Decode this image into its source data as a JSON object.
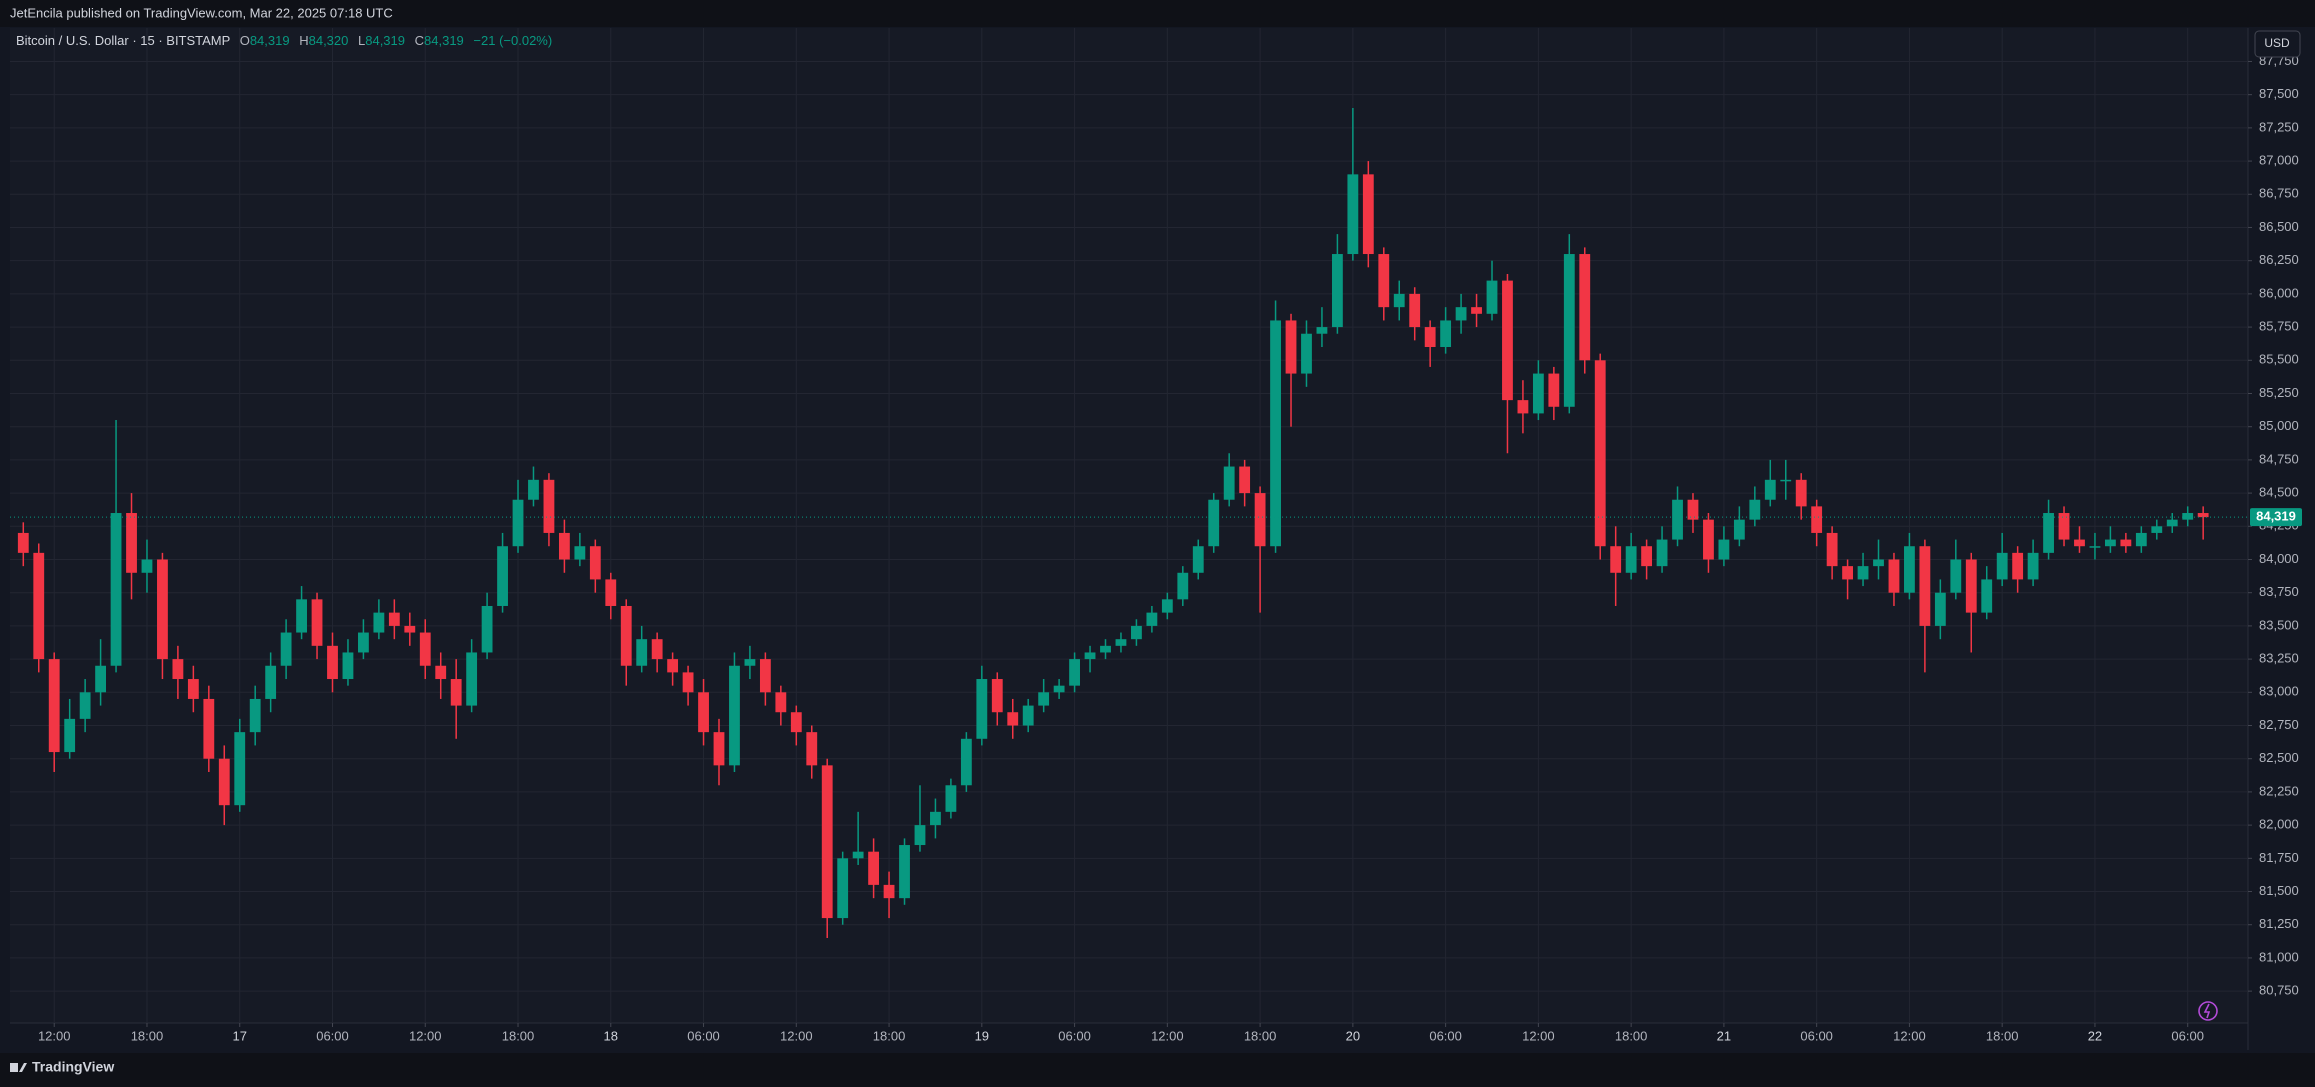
{
  "header": {
    "publisher": "JetEncila published on TradingView.com, Mar 22, 2025 07:18 UTC"
  },
  "legend": {
    "symbol": "Bitcoin / U.S. Dollar · 15 · BITSTAMP",
    "ohlc": [
      {
        "key": "O",
        "value": "84,319"
      },
      {
        "key": "H",
        "value": "84,320"
      },
      {
        "key": "L",
        "value": "84,319"
      },
      {
        "key": "C",
        "value": "84,319"
      }
    ],
    "change": "−21 (−0.02%)"
  },
  "currency": "USD",
  "footer": "TradingView",
  "chart_data": {
    "type": "candlestick",
    "x": [
      10,
      11,
      12,
      13,
      14,
      15,
      16,
      17,
      18,
      19,
      20,
      21,
      22,
      23,
      24,
      25,
      26,
      27,
      28,
      29,
      30,
      31,
      32,
      33,
      34,
      35,
      36,
      37,
      38,
      39,
      40,
      41,
      42,
      43,
      44,
      45,
      46,
      47,
      48,
      49,
      50,
      51,
      52,
      53,
      54,
      55,
      56,
      57,
      58,
      59,
      60,
      61,
      62,
      63,
      64,
      65,
      66,
      67,
      68,
      69,
      70,
      71,
      72,
      73,
      74,
      75,
      76,
      77,
      78,
      79,
      80,
      81,
      82,
      83,
      84,
      85,
      86,
      87,
      88,
      89,
      90,
      91,
      92,
      93,
      94,
      95,
      96,
      97,
      98,
      99,
      100,
      101,
      102,
      103,
      104,
      105,
      106,
      107,
      108,
      109,
      110,
      111,
      112,
      113,
      114,
      115,
      116,
      117,
      118,
      119,
      120,
      121,
      122,
      123,
      124,
      125,
      126,
      127,
      128,
      129,
      130,
      131,
      132,
      133,
      134,
      135,
      136,
      137,
      138,
      139,
      140,
      141,
      142,
      143,
      144,
      145,
      146,
      147,
      148,
      149,
      150,
      151
    ],
    "open": [
      84200,
      84050,
      83250,
      82550,
      82800,
      83000,
      83200,
      84350,
      83900,
      84000,
      83250,
      83100,
      82950,
      82500,
      82150,
      82700,
      82950,
      83200,
      83450,
      83700,
      83350,
      83100,
      83300,
      83450,
      83600,
      83500,
      83450,
      83200,
      83100,
      82900,
      83300,
      83650,
      84100,
      84450,
      84600,
      84200,
      84000,
      84100,
      83850,
      83650,
      83200,
      83400,
      83250,
      83150,
      83000,
      82700,
      82450,
      83200,
      83250,
      83000,
      82850,
      82700,
      82450,
      81300,
      81750,
      81800,
      81550,
      81450,
      81850,
      82000,
      82100,
      82300,
      82650,
      83100,
      82850,
      82750,
      82900,
      83000,
      83050,
      83250,
      83300,
      83350,
      83400,
      83500,
      83600,
      83700,
      83900,
      84100,
      84450,
      84700,
      84500,
      84100,
      85800,
      85400,
      85700,
      85750,
      86300,
      86900,
      86300,
      85900,
      86000,
      85750,
      85600,
      85800,
      85900,
      85850,
      86100,
      85200,
      85100,
      85400,
      85150,
      86300,
      85500,
      84100,
      83900,
      84100,
      83950,
      84150,
      84450,
      84300,
      84000,
      84150,
      84300,
      84450,
      84600,
      84600,
      84400,
      84200,
      83950,
      83850,
      83950,
      84000,
      83750,
      84100,
      83500,
      83750,
      84000,
      83600,
      83850,
      84050,
      83850,
      84050,
      84350,
      84150,
      84100,
      84100,
      84150,
      84100,
      84200,
      84250,
      84300,
      84350
    ],
    "high": [
      84280,
      84120,
      83300,
      82950,
      83100,
      83400,
      85050,
      84500,
      84150,
      84050,
      83350,
      83200,
      83050,
      82600,
      82800,
      83050,
      83300,
      83550,
      83800,
      83750,
      83450,
      83400,
      83550,
      83700,
      83700,
      83600,
      83550,
      83300,
      83250,
      83400,
      83750,
      84200,
      84600,
      84700,
      84650,
      84300,
      84200,
      84150,
      83900,
      83700,
      83500,
      83450,
      83300,
      83200,
      83100,
      82800,
      83300,
      83350,
      83300,
      83050,
      82900,
      82750,
      82500,
      81800,
      82100,
      81900,
      81650,
      81900,
      82300,
      82200,
      82350,
      82700,
      83200,
      83150,
      82950,
      82950,
      83100,
      83100,
      83300,
      83350,
      83400,
      83450,
      83550,
      83650,
      83750,
      83950,
      84150,
      84500,
      84800,
      84750,
      84550,
      85950,
      85850,
      85800,
      85900,
      86450,
      87400,
      87000,
      86350,
      86100,
      86050,
      85800,
      85900,
      86000,
      86000,
      86250,
      86150,
      85350,
      85500,
      85450,
      86450,
      86350,
      85550,
      84250,
      84200,
      84150,
      84250,
      84550,
      84500,
      84350,
      84250,
      84400,
      84550,
      84750,
      84750,
      84650,
      84450,
      84250,
      84000,
      84050,
      84150,
      84050,
      84200,
      84150,
      83850,
      84150,
      84050,
      83950,
      84200,
      84100,
      84150,
      84450,
      84400,
      84250,
      84200,
      84250,
      84200,
      84250,
      84300,
      84350,
      84400,
      84400
    ],
    "low": [
      83950,
      83150,
      82400,
      82500,
      82700,
      82900,
      83150,
      83700,
      83750,
      83100,
      82950,
      82850,
      82400,
      82000,
      82100,
      82600,
      82850,
      83100,
      83400,
      83250,
      83000,
      83050,
      83250,
      83400,
      83400,
      83350,
      83100,
      82950,
      82650,
      82850,
      83250,
      83600,
      84050,
      84400,
      84100,
      83900,
      83950,
      83750,
      83550,
      83050,
      83150,
      83150,
      83050,
      82900,
      82600,
      82300,
      82400,
      83100,
      82900,
      82750,
      82600,
      82350,
      81150,
      81250,
      81700,
      81450,
      81300,
      81400,
      81800,
      81900,
      82050,
      82250,
      82600,
      82750,
      82650,
      82700,
      82850,
      82950,
      83000,
      83150,
      83250,
      83300,
      83350,
      83450,
      83550,
      83650,
      83850,
      84050,
      84400,
      84400,
      83600,
      84050,
      85000,
      85300,
      85600,
      85700,
      86250,
      86200,
      85800,
      85800,
      85650,
      85450,
      85550,
      85700,
      85750,
      85800,
      84800,
      84950,
      85050,
      85050,
      85100,
      85400,
      84000,
      83650,
      83850,
      83850,
      83900,
      84100,
      84200,
      83900,
      83950,
      84100,
      84250,
      84400,
      84450,
      84300,
      84100,
      83850,
      83700,
      83800,
      83850,
      83650,
      83700,
      83150,
      83400,
      83700,
      83300,
      83550,
      83800,
      83750,
      83800,
      84000,
      84100,
      84050,
      84000,
      84050,
      84050,
      84050,
      84150,
      84200,
      84250,
      84150
    ],
    "close": [
      84050,
      83250,
      82550,
      82800,
      83000,
      83200,
      84350,
      83900,
      84000,
      83250,
      83100,
      82950,
      82500,
      82150,
      82700,
      82950,
      83200,
      83450,
      83700,
      83350,
      83100,
      83300,
      83450,
      83600,
      83500,
      83450,
      83200,
      83100,
      82900,
      83300,
      83650,
      84100,
      84450,
      84600,
      84200,
      84000,
      84100,
      83850,
      83650,
      83200,
      83400,
      83250,
      83150,
      83000,
      82700,
      82450,
      83200,
      83250,
      83000,
      82850,
      82700,
      82450,
      81300,
      81750,
      81800,
      81550,
      81450,
      81850,
      82000,
      82100,
      82300,
      82650,
      83100,
      82850,
      82750,
      82900,
      83000,
      83050,
      83250,
      83300,
      83350,
      83400,
      83500,
      83600,
      83700,
      83900,
      84100,
      84450,
      84700,
      84500,
      84100,
      85800,
      85400,
      85700,
      85750,
      86300,
      86900,
      86300,
      85900,
      86000,
      85750,
      85600,
      85800,
      85900,
      85850,
      86100,
      85200,
      85100,
      85400,
      85150,
      86300,
      85500,
      84100,
      83900,
      84100,
      83950,
      84150,
      84450,
      84300,
      84000,
      84150,
      84300,
      84450,
      84600,
      84600,
      84400,
      84200,
      83950,
      83850,
      83950,
      84000,
      83750,
      84100,
      83500,
      83750,
      84000,
      83600,
      83850,
      84050,
      83850,
      84050,
      84350,
      84150,
      84100,
      84100,
      84150,
      84100,
      84200,
      84250,
      84300,
      84350,
      84319
    ],
    "up_color": "#089981",
    "down_color": "#f23645",
    "xlim": [
      9.14,
      153.9
    ],
    "xticks": [
      {
        "value": 12,
        "label": "12:00"
      },
      {
        "value": 18,
        "label": "18:00"
      },
      {
        "value": 24,
        "label": "17"
      },
      {
        "value": 30,
        "label": "06:00"
      },
      {
        "value": 36,
        "label": "12:00"
      },
      {
        "value": 42,
        "label": "18:00"
      },
      {
        "value": 48,
        "label": "18"
      },
      {
        "value": 54,
        "label": "06:00"
      },
      {
        "value": 60,
        "label": "12:00"
      },
      {
        "value": 66,
        "label": "18:00"
      },
      {
        "value": 72,
        "label": "19"
      },
      {
        "value": 78,
        "label": "06:00"
      },
      {
        "value": 84,
        "label": "12:00"
      },
      {
        "value": 90,
        "label": "18:00"
      },
      {
        "value": 96,
        "label": "20"
      },
      {
        "value": 102,
        "label": "06:00"
      },
      {
        "value": 108,
        "label": "12:00"
      },
      {
        "value": 114,
        "label": "18:00"
      },
      {
        "value": 120,
        "label": "21"
      },
      {
        "value": 126,
        "label": "06:00"
      },
      {
        "value": 132,
        "label": "12:00"
      },
      {
        "value": 138,
        "label": "18:00"
      },
      {
        "value": 144,
        "label": "22"
      },
      {
        "value": 150,
        "label": "06:00"
      }
    ],
    "ylim": [
      80510,
      88002
    ],
    "yticks": [
      {
        "value": 80750,
        "label": "80,750"
      },
      {
        "value": 81000,
        "label": "81,000"
      },
      {
        "value": 81250,
        "label": "81,250"
      },
      {
        "value": 81500,
        "label": "81,500"
      },
      {
        "value": 81750,
        "label": "81,750"
      },
      {
        "value": 82000,
        "label": "82,000"
      },
      {
        "value": 82250,
        "label": "82,250"
      },
      {
        "value": 82500,
        "label": "82,500"
      },
      {
        "value": 82750,
        "label": "82,750"
      },
      {
        "value": 83000,
        "label": "83,000"
      },
      {
        "value": 83250,
        "label": "83,250"
      },
      {
        "value": 83500,
        "label": "83,500"
      },
      {
        "value": 83750,
        "label": "83,750"
      },
      {
        "value": 84000,
        "label": "84,000"
      },
      {
        "value": 84250,
        "label": "84,250"
      },
      {
        "value": 84500,
        "label": "84,500"
      },
      {
        "value": 84750,
        "label": "84,750"
      },
      {
        "value": 85000,
        "label": "85,000"
      },
      {
        "value": 85250,
        "label": "85,250"
      },
      {
        "value": 85500,
        "label": "85,500"
      },
      {
        "value": 85750,
        "label": "85,750"
      },
      {
        "value": 86000,
        "label": "86,000"
      },
      {
        "value": 86250,
        "label": "86,250"
      },
      {
        "value": 86500,
        "label": "86,500"
      },
      {
        "value": 86750,
        "label": "86,750"
      },
      {
        "value": 87000,
        "label": "87,000"
      },
      {
        "value": 87250,
        "label": "87,250"
      },
      {
        "value": 87500,
        "label": "87,500"
      },
      {
        "value": 87750,
        "label": "87,750"
      }
    ],
    "grid": true,
    "last_price": {
      "value": 84319,
      "label": "84,319"
    }
  }
}
